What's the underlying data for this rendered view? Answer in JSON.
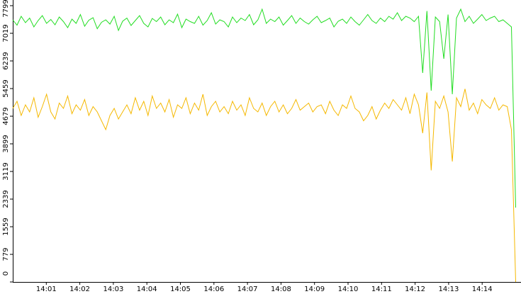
{
  "chart_data": {
    "type": "line",
    "xlim": [
      "14:00",
      "14:15"
    ],
    "xticks": [
      "14:01",
      "14:02",
      "14:03",
      "14:04",
      "14:05",
      "14:06",
      "14:07",
      "14:08",
      "14:09",
      "14:10",
      "14:11",
      "14:12",
      "14:13",
      "14:14"
    ],
    "ylim": [
      0,
      7959
    ],
    "yticks": [
      0,
      779,
      1559,
      2339,
      3119,
      3899,
      4679,
      5459,
      6239,
      7019,
      7799
    ],
    "series": [
      {
        "color": "#22dd22",
        "values": [
          7400,
          7250,
          7500,
          7320,
          7450,
          7200,
          7380,
          7520,
          7300,
          7410,
          7260,
          7480,
          7350,
          7180,
          7420,
          7300,
          7550,
          7220,
          7390,
          7460,
          7150,
          7330,
          7400,
          7280,
          7500,
          7100,
          7360,
          7450,
          7240,
          7380,
          7520,
          7300,
          7200,
          7440,
          7350,
          7480,
          7260,
          7400,
          7320,
          7560,
          7180,
          7420,
          7350,
          7300,
          7500,
          7250,
          7380,
          7600,
          7280,
          7400,
          7350,
          7200,
          7480,
          7320,
          7450,
          7380,
          7550,
          7260,
          7400,
          7700,
          7300,
          7420,
          7350,
          7480,
          7250,
          7380,
          7520,
          7300,
          7450,
          7350,
          7280,
          7400,
          7500,
          7320,
          7380,
          7450,
          7200,
          7360,
          7420,
          7300,
          7480,
          7350,
          7250,
          7400,
          7550,
          7380,
          7300,
          7450,
          7350,
          7500,
          7420,
          7600,
          7380,
          7500,
          7450,
          7350,
          7500,
          5900,
          7650,
          5400,
          7480,
          7350,
          6300,
          7550,
          5300,
          7450,
          7700,
          7350,
          7500,
          7300,
          7420,
          7550,
          7380,
          7450,
          7500,
          7350,
          7400,
          7300,
          7200,
          2100
        ]
      },
      {
        "color": "#f5b800",
        "values": [
          4900,
          5100,
          4700,
          5000,
          4800,
          5200,
          4650,
          4950,
          5300,
          4800,
          4600,
          5050,
          4900,
          5250,
          4750,
          5000,
          4850,
          5150,
          4700,
          4950,
          4800,
          4550,
          4300,
          4700,
          4900,
          4600,
          4800,
          5000,
          4750,
          5200,
          4850,
          5100,
          4700,
          5250,
          4900,
          5050,
          4800,
          5150,
          4650,
          5000,
          4900,
          5200,
          4750,
          5050,
          4850,
          5300,
          4700,
          4950,
          5100,
          4800,
          4950,
          4750,
          5100,
          4850,
          5000,
          4700,
          5200,
          4900,
          4800,
          5050,
          4700,
          4950,
          5100,
          4800,
          5000,
          4750,
          4900,
          5150,
          4850,
          4950,
          5050,
          4800,
          4950,
          5000,
          4750,
          5100,
          4850,
          4700,
          5000,
          4900,
          5250,
          4900,
          4800,
          4550,
          4700,
          4950,
          4600,
          4850,
          5050,
          4900,
          5150,
          5000,
          4850,
          5200,
          4750,
          5300,
          5000,
          4200,
          5350,
          3150,
          5100,
          4900,
          5250,
          4800,
          3400,
          5200,
          4950,
          5450,
          4850,
          5050,
          4750,
          5150,
          5000,
          4900,
          5200,
          4850,
          5000,
          4950,
          4300,
          0
        ]
      }
    ]
  }
}
